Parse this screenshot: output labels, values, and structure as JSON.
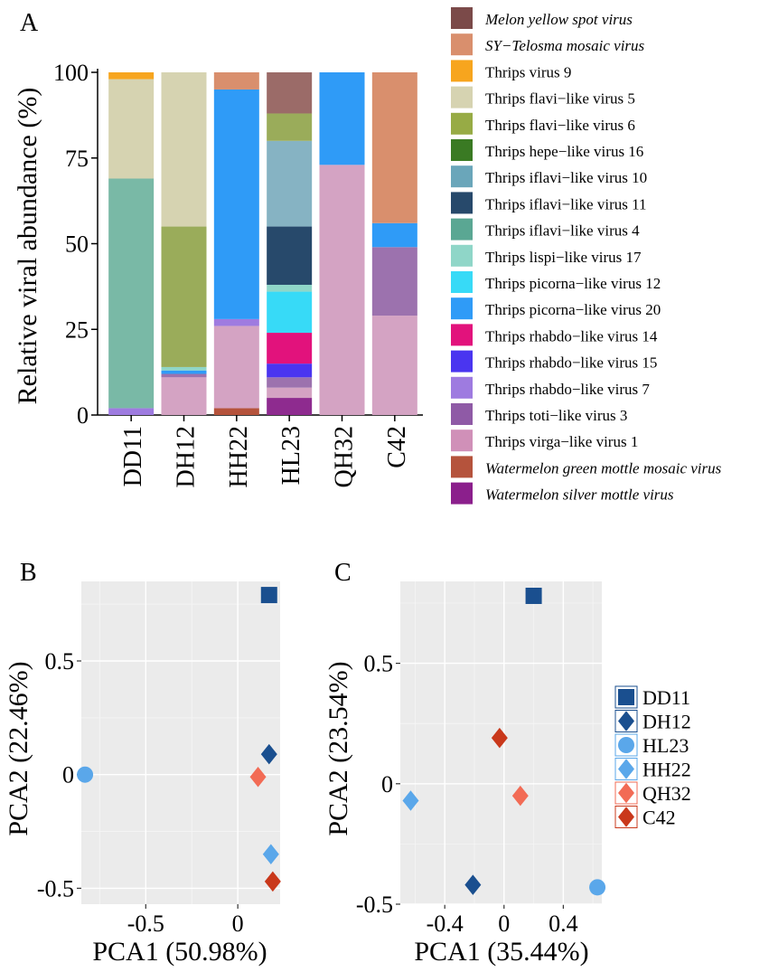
{
  "chart_data": [
    {
      "panel": "A",
      "type": "bar",
      "stacked": true,
      "ylabel": "Relative viral abundance (%)",
      "xlabel": "",
      "ylim": [
        0,
        100
      ],
      "yticks": [
        0,
        25,
        50,
        75,
        100
      ],
      "categories": [
        "DD11",
        "DH12",
        "HH22",
        "HL23",
        "QH32",
        "C42"
      ],
      "legend_position": "right",
      "series": [
        {
          "name": "Watermelon silver mottle virus",
          "italic": true,
          "color": "#8e2b8f",
          "values": [
            0,
            0,
            0,
            5,
            0,
            0
          ]
        },
        {
          "name": "Watermelon green mottle mosaic virus",
          "italic": true,
          "color": "#b5533c",
          "values": [
            0,
            0,
            2,
            0,
            0,
            0
          ]
        },
        {
          "name": "Thrips virga-like virus 1",
          "italic": false,
          "color": "#d4a3c3",
          "values": [
            0,
            11,
            24,
            3,
            73,
            29
          ]
        },
        {
          "name": "Thrips toti-like virus 3",
          "italic": false,
          "color": "#9c72ae",
          "values": [
            0,
            1,
            0,
            3,
            0,
            20
          ]
        },
        {
          "name": "Thrips rhabdo-like virus 7",
          "italic": false,
          "color": "#9e7be0",
          "values": [
            2,
            0,
            2,
            0,
            0,
            0
          ]
        },
        {
          "name": "Thrips rhabdo-like virus 15",
          "italic": false,
          "color": "#4a35f0",
          "values": [
            0,
            0,
            0,
            4,
            0,
            0
          ]
        },
        {
          "name": "Thrips rhabdo-like  virus 14",
          "italic": false,
          "color": "#e2127c",
          "values": [
            0,
            0,
            0,
            9,
            0,
            0
          ]
        },
        {
          "name": "Thrips picorna-like virus 20",
          "italic": false,
          "color": "#2f9bf7",
          "values": [
            0,
            1,
            67,
            0,
            27,
            7
          ]
        },
        {
          "name": "Thrips picorna-like virus 12",
          "italic": false,
          "color": "#37daf7",
          "values": [
            0,
            0,
            0,
            12,
            0,
            0
          ]
        },
        {
          "name": "Thrips lispi-like virus 17",
          "italic": false,
          "color": "#8fd6c8",
          "values": [
            0,
            1,
            0,
            2,
            0,
            0
          ]
        },
        {
          "name": "Thrips iflavi-like virus 4",
          "italic": false,
          "color": "#79b9a6",
          "values": [
            67,
            0,
            0,
            0,
            0,
            0
          ]
        },
        {
          "name": "Thrips iflavi-like virus 11",
          "italic": false,
          "color": "#27496b",
          "values": [
            0,
            0,
            0,
            17,
            0,
            0
          ]
        },
        {
          "name": "Thrips iflavi-like virus 10",
          "italic": false,
          "color": "#86b3c3",
          "values": [
            0,
            0,
            0,
            25,
            0,
            0
          ]
        },
        {
          "name": "Thrips hepe-like virus 16",
          "italic": false,
          "color": "#3a7a23",
          "values": [
            0,
            0,
            0,
            0,
            0,
            0
          ]
        },
        {
          "name": "Thrips flavi-like virus 6",
          "italic": false,
          "color": "#9aac5a",
          "values": [
            0,
            41,
            0,
            8,
            0,
            0
          ]
        },
        {
          "name": "Thrips flavi-like virus 5",
          "italic": false,
          "color": "#d6d3b1",
          "values": [
            29,
            45,
            0,
            0,
            0,
            0
          ]
        },
        {
          "name": "Thrips  virus 9",
          "italic": false,
          "color": "#f7a51e",
          "values": [
            2,
            0,
            0,
            0,
            0,
            0
          ]
        },
        {
          "name": "SY-Telosma mosaic virus",
          "italic": true,
          "color": "#d98f6d",
          "values": [
            0,
            0,
            5,
            0,
            0,
            44
          ]
        },
        {
          "name": "Melon yellow spot virus",
          "italic": true,
          "color": "#9b6b68",
          "values": [
            0,
            0,
            0,
            12,
            0,
            0
          ]
        }
      ],
      "legend_order": [
        "Melon yellow spot virus",
        "SY-Telosma mosaic virus",
        "Thrips  virus 9",
        "Thrips flavi-like virus 5",
        "Thrips flavi-like virus 6",
        "Thrips hepe-like virus 16",
        "Thrips iflavi-like virus 10",
        "Thrips iflavi-like virus 11",
        "Thrips iflavi-like virus 4",
        "Thrips lispi-like virus 17",
        "Thrips picorna-like virus 12",
        "Thrips picorna-like virus 20",
        "Thrips rhabdo-like  virus 14",
        "Thrips rhabdo-like virus 15",
        "Thrips rhabdo-like virus 7",
        "Thrips toti-like virus 3",
        "Thrips virga-like virus 1",
        "Watermelon green mottle mosaic virus",
        "Watermelon silver mottle virus"
      ],
      "legend_colors": {
        "Melon yellow spot virus": "#7b4a49",
        "Thrips flavi-like virus 6": "#97ab45",
        "Thrips hepe-like virus 16": "#3a7a23",
        "Thrips iflavi-like virus 10": "#6aa6ba",
        "Thrips iflavi-like virus 4": "#5aa793",
        "Thrips toti-like virus 3": "#8f5aa6",
        "Thrips virga-like virus 1": "#d090b8",
        "Watermelon silver mottle virus": "#8b1f8c"
      }
    },
    {
      "panel": "B",
      "type": "scatter",
      "xlabel": "PCA1 (50.98%)",
      "ylabel": "PCA2 (22.46%)",
      "xlim": [
        -0.85,
        0.23
      ],
      "ylim": [
        -0.57,
        0.85
      ],
      "xticks": [
        -0.5,
        0
      ],
      "xtick_labels": [
        "-0.5",
        "0"
      ],
      "yticks": [
        -0.5,
        0,
        0.5
      ],
      "ytick_labels": [
        "-0.5",
        "0",
        "0.5"
      ],
      "points": [
        {
          "sample": "DD11",
          "x": 0.17,
          "y": 0.79
        },
        {
          "sample": "DH12",
          "x": 0.17,
          "y": 0.09
        },
        {
          "sample": "HL23",
          "x": -0.83,
          "y": 0.0
        },
        {
          "sample": "HH22",
          "x": 0.18,
          "y": -0.35
        },
        {
          "sample": "QH32",
          "x": 0.11,
          "y": -0.01
        },
        {
          "sample": "C42",
          "x": 0.19,
          "y": -0.47
        }
      ]
    },
    {
      "panel": "C",
      "type": "scatter",
      "xlabel": "PCA1 (35.44%)",
      "ylabel": "PCA2 (23.54%)",
      "xlim": [
        -0.7,
        0.66
      ],
      "ylim": [
        -0.5,
        0.84
      ],
      "xticks": [
        -0.4,
        0,
        0.4
      ],
      "xtick_labels": [
        "-0.4",
        "0",
        "0.4"
      ],
      "yticks": [
        -0.5,
        0,
        0.5
      ],
      "ytick_labels": [
        "-0.5",
        "0",
        "0.5"
      ],
      "points": [
        {
          "sample": "DD11",
          "x": 0.2,
          "y": 0.78
        },
        {
          "sample": "DH12",
          "x": -0.21,
          "y": -0.42
        },
        {
          "sample": "HL23",
          "x": 0.63,
          "y": -0.43
        },
        {
          "sample": "HH22",
          "x": -0.63,
          "y": -0.07
        },
        {
          "sample": "QH32",
          "x": 0.11,
          "y": -0.05
        },
        {
          "sample": "C42",
          "x": -0.03,
          "y": 0.19
        }
      ]
    }
  ],
  "panel_labels": {
    "a": "A",
    "b": "B",
    "c": "C"
  },
  "pca_legend": [
    {
      "sample": "DD11",
      "shape": "square",
      "color": "#1a4f8f"
    },
    {
      "sample": "DH12",
      "shape": "diamond",
      "color": "#1a4f8f"
    },
    {
      "sample": "HL23",
      "shape": "circle",
      "color": "#5aa7ea"
    },
    {
      "sample": "HH22",
      "shape": "diamond",
      "color": "#5aa7ea"
    },
    {
      "sample": "QH32",
      "shape": "diamond",
      "color": "#f26b55"
    },
    {
      "sample": "C42",
      "shape": "diamond",
      "color": "#c9381b"
    }
  ]
}
